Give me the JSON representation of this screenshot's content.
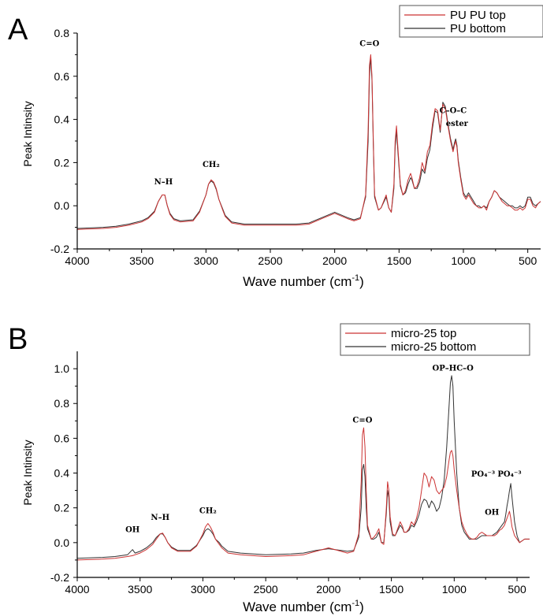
{
  "chart_data": [
    {
      "panel_label": "A",
      "type": "line",
      "title": "",
      "xlabel": "Wave number (cm⁻¹)",
      "xlabel_main": "Wave number (cm",
      "xlabel_sup": "-1",
      "xlabel_end": ")",
      "ylabel": "Peak Intinsity",
      "xlim": [
        4000,
        400
      ],
      "ylim": [
        -0.2,
        0.8
      ],
      "x_ticks": [
        4000,
        3500,
        3000,
        2500,
        2000,
        1500,
        1000,
        500
      ],
      "y_ticks": [
        -0.2,
        0.0,
        0.2,
        0.4,
        0.6,
        0.8
      ],
      "y_tick_labels": [
        "-0.2",
        "0.0",
        "0.2",
        "0.4",
        "0.6",
        "0.8"
      ],
      "legend_position": "top-right",
      "series": [
        {
          "name": "PU PU top",
          "color": "#cc3333",
          "x": [
            4000,
            3800,
            3700,
            3600,
            3500,
            3450,
            3400,
            3370,
            3340,
            3320,
            3300,
            3280,
            3250,
            3200,
            3100,
            3050,
            3000,
            2980,
            2960,
            2940,
            2920,
            2900,
            2870,
            2850,
            2800,
            2700,
            2500,
            2300,
            2200,
            2100,
            2000,
            1900,
            1850,
            1800,
            1760,
            1740,
            1730,
            1720,
            1710,
            1700,
            1690,
            1660,
            1640,
            1600,
            1580,
            1560,
            1540,
            1530,
            1520,
            1510,
            1490,
            1470,
            1450,
            1430,
            1410,
            1400,
            1380,
            1360,
            1340,
            1320,
            1300,
            1280,
            1260,
            1240,
            1220,
            1200,
            1180,
            1160,
            1140,
            1120,
            1100,
            1080,
            1070,
            1060,
            1050,
            1040,
            1020,
            1000,
            980,
            960,
            940,
            920,
            900,
            880,
            860,
            840,
            820,
            800,
            780,
            760,
            740,
            720,
            700,
            680,
            660,
            640,
            620,
            600,
            580,
            560,
            540,
            520,
            500,
            480,
            460,
            440,
            420,
            400
          ],
          "y": [
            -0.11,
            -0.105,
            -0.1,
            -0.09,
            -0.075,
            -0.06,
            -0.03,
            0.02,
            0.05,
            0.05,
            0.0,
            -0.04,
            -0.065,
            -0.075,
            -0.07,
            -0.03,
            0.05,
            0.1,
            0.12,
            0.11,
            0.08,
            0.03,
            -0.02,
            -0.05,
            -0.08,
            -0.09,
            -0.09,
            -0.09,
            -0.085,
            -0.06,
            -0.035,
            -0.06,
            -0.07,
            -0.06,
            0.05,
            0.35,
            0.65,
            0.7,
            0.6,
            0.3,
            0.05,
            -0.02,
            -0.01,
            0.05,
            -0.01,
            -0.03,
            0.1,
            0.3,
            0.37,
            0.28,
            0.1,
            0.05,
            0.07,
            0.12,
            0.15,
            0.13,
            0.08,
            0.09,
            0.13,
            0.2,
            0.16,
            0.25,
            0.28,
            0.38,
            0.45,
            0.44,
            0.35,
            0.47,
            0.45,
            0.37,
            0.3,
            0.25,
            0.28,
            0.3,
            0.27,
            0.2,
            0.12,
            0.05,
            0.03,
            0.05,
            0.03,
            0.01,
            0.0,
            -0.01,
            -0.01,
            0.0,
            -0.02,
            0.02,
            0.04,
            0.07,
            0.06,
            0.04,
            0.02,
            0.01,
            0.0,
            0.0,
            -0.01,
            -0.02,
            -0.02,
            -0.01,
            -0.02,
            -0.01,
            0.03,
            0.03,
            0.0,
            -0.01,
            0.01,
            0.02
          ]
        },
        {
          "name": "PU bottom",
          "color": "#333333",
          "x": [
            4000,
            3800,
            3700,
            3600,
            3500,
            3450,
            3400,
            3370,
            3340,
            3320,
            3300,
            3280,
            3250,
            3200,
            3100,
            3050,
            3000,
            2980,
            2960,
            2940,
            2920,
            2900,
            2870,
            2850,
            2800,
            2700,
            2500,
            2300,
            2200,
            2100,
            2000,
            1900,
            1850,
            1800,
            1760,
            1740,
            1730,
            1720,
            1710,
            1700,
            1690,
            1660,
            1640,
            1600,
            1580,
            1560,
            1540,
            1530,
            1520,
            1510,
            1490,
            1470,
            1450,
            1430,
            1410,
            1400,
            1380,
            1360,
            1340,
            1320,
            1300,
            1280,
            1260,
            1240,
            1220,
            1200,
            1180,
            1160,
            1140,
            1120,
            1100,
            1080,
            1070,
            1060,
            1050,
            1040,
            1020,
            1000,
            980,
            960,
            940,
            920,
            900,
            880,
            860,
            840,
            820,
            800,
            780,
            760,
            740,
            720,
            700,
            680,
            660,
            640,
            620,
            600,
            580,
            560,
            540,
            520,
            500,
            480,
            460,
            440,
            420,
            400
          ],
          "y": [
            -0.105,
            -0.1,
            -0.095,
            -0.085,
            -0.07,
            -0.055,
            -0.025,
            0.02,
            0.05,
            0.05,
            0.0,
            -0.035,
            -0.06,
            -0.07,
            -0.065,
            -0.025,
            0.05,
            0.1,
            0.115,
            0.105,
            0.075,
            0.03,
            -0.015,
            -0.045,
            -0.075,
            -0.085,
            -0.085,
            -0.085,
            -0.08,
            -0.055,
            -0.03,
            -0.055,
            -0.065,
            -0.055,
            0.04,
            0.3,
            0.6,
            0.69,
            0.58,
            0.28,
            0.04,
            -0.02,
            -0.01,
            0.04,
            -0.01,
            -0.03,
            0.08,
            0.27,
            0.35,
            0.26,
            0.09,
            0.05,
            0.06,
            0.1,
            0.13,
            0.12,
            0.08,
            0.08,
            0.11,
            0.17,
            0.15,
            0.22,
            0.26,
            0.36,
            0.44,
            0.43,
            0.34,
            0.48,
            0.46,
            0.38,
            0.31,
            0.26,
            0.29,
            0.31,
            0.28,
            0.21,
            0.13,
            0.06,
            0.04,
            0.06,
            0.04,
            0.02,
            0.0,
            0.0,
            -0.01,
            0.0,
            -0.01,
            0.02,
            0.04,
            0.07,
            0.06,
            0.04,
            0.03,
            0.02,
            0.01,
            0.0,
            0.0,
            -0.01,
            -0.01,
            0.0,
            -0.01,
            0.0,
            0.04,
            0.04,
            0.01,
            0.0,
            0.01,
            0.02
          ]
        }
      ],
      "annotations": [
        {
          "text": "N–H",
          "x": 3330,
          "y": 0.1
        },
        {
          "text": "CH₂",
          "x": 2960,
          "y": 0.18
        },
        {
          "text": "C=O",
          "x": 1730,
          "y": 0.74
        },
        {
          "text": "C–O–C",
          "x": 1080,
          "y": 0.43
        },
        {
          "text": "ester",
          "x": 1050,
          "y": 0.37
        }
      ]
    },
    {
      "panel_label": "B",
      "type": "line",
      "title": "",
      "xlabel": "Wave number (cm⁻¹)",
      "xlabel_main": "Wave number (cm",
      "xlabel_sup": "-1",
      "xlabel_end": ")",
      "ylabel": "Peak Intinsity",
      "xlim": [
        4000,
        400
      ],
      "ylim": [
        -0.2,
        1.1
      ],
      "x_ticks": [
        4000,
        3500,
        3000,
        2500,
        2000,
        1500,
        1000,
        500
      ],
      "y_ticks": [
        -0.2,
        0.0,
        0.2,
        0.4,
        0.6,
        0.8,
        1.0
      ],
      "y_tick_labels": [
        "-0.2",
        "0.0",
        "0.2",
        "0.4",
        "0.6",
        "0.8",
        "1.0"
      ],
      "legend_position": "top-right",
      "series": [
        {
          "name": "micro-25 top",
          "color": "#cc3333",
          "x": [
            4000,
            3800,
            3700,
            3600,
            3560,
            3540,
            3500,
            3450,
            3400,
            3370,
            3340,
            3320,
            3300,
            3280,
            3250,
            3200,
            3100,
            3050,
            3000,
            2980,
            2960,
            2940,
            2920,
            2900,
            2870,
            2850,
            2800,
            2700,
            2500,
            2300,
            2200,
            2100,
            2000,
            1900,
            1850,
            1800,
            1760,
            1740,
            1730,
            1720,
            1710,
            1700,
            1690,
            1660,
            1640,
            1620,
            1600,
            1580,
            1560,
            1540,
            1530,
            1520,
            1510,
            1490,
            1470,
            1450,
            1430,
            1410,
            1400,
            1380,
            1360,
            1340,
            1320,
            1300,
            1280,
            1260,
            1240,
            1220,
            1200,
            1180,
            1160,
            1140,
            1120,
            1100,
            1080,
            1060,
            1040,
            1030,
            1020,
            1010,
            1000,
            980,
            960,
            940,
            920,
            900,
            880,
            860,
            840,
            820,
            800,
            780,
            760,
            740,
            720,
            700,
            680,
            660,
            640,
            620,
            600,
            590,
            580,
            570,
            560,
            550,
            540,
            520,
            500,
            480,
            460,
            440,
            420,
            400
          ],
          "y": [
            -0.1,
            -0.095,
            -0.09,
            -0.08,
            -0.075,
            -0.07,
            -0.06,
            -0.04,
            -0.01,
            0.02,
            0.05,
            0.055,
            0.03,
            0.0,
            -0.03,
            -0.05,
            -0.05,
            -0.02,
            0.05,
            0.09,
            0.11,
            0.09,
            0.06,
            0.02,
            -0.01,
            -0.03,
            -0.06,
            -0.07,
            -0.08,
            -0.075,
            -0.07,
            -0.05,
            -0.03,
            -0.05,
            -0.06,
            -0.05,
            0.05,
            0.35,
            0.62,
            0.66,
            0.55,
            0.3,
            0.1,
            0.02,
            0.03,
            0.05,
            0.08,
            0.0,
            -0.01,
            0.2,
            0.35,
            0.3,
            0.15,
            0.05,
            0.04,
            0.08,
            0.12,
            0.09,
            0.06,
            0.06,
            0.08,
            0.12,
            0.1,
            0.14,
            0.2,
            0.3,
            0.4,
            0.38,
            0.32,
            0.38,
            0.36,
            0.3,
            0.28,
            0.3,
            0.32,
            0.38,
            0.48,
            0.52,
            0.53,
            0.5,
            0.42,
            0.3,
            0.2,
            0.12,
            0.08,
            0.05,
            0.03,
            0.02,
            0.02,
            0.03,
            0.05,
            0.06,
            0.05,
            0.04,
            0.04,
            0.04,
            0.04,
            0.05,
            0.07,
            0.08,
            0.1,
            0.12,
            0.14,
            0.16,
            0.18,
            0.14,
            0.09,
            0.04,
            0.02,
            0.0,
            0.01,
            0.02,
            0.02,
            0.02
          ]
        },
        {
          "name": "micro-25 bottom",
          "color": "#333333",
          "x": [
            4000,
            3800,
            3700,
            3600,
            3560,
            3540,
            3500,
            3450,
            3400,
            3370,
            3340,
            3320,
            3300,
            3280,
            3250,
            3200,
            3100,
            3050,
            3000,
            2980,
            2960,
            2940,
            2920,
            2900,
            2870,
            2850,
            2800,
            2700,
            2500,
            2300,
            2200,
            2100,
            2000,
            1900,
            1850,
            1800,
            1760,
            1740,
            1730,
            1720,
            1710,
            1700,
            1690,
            1660,
            1640,
            1620,
            1600,
            1580,
            1560,
            1540,
            1530,
            1520,
            1510,
            1490,
            1470,
            1450,
            1430,
            1410,
            1400,
            1380,
            1360,
            1340,
            1320,
            1300,
            1280,
            1260,
            1240,
            1220,
            1200,
            1180,
            1160,
            1140,
            1120,
            1100,
            1080,
            1060,
            1040,
            1030,
            1020,
            1010,
            1000,
            980,
            960,
            940,
            920,
            900,
            880,
            860,
            840,
            820,
            800,
            780,
            760,
            740,
            720,
            700,
            680,
            660,
            640,
            620,
            600,
            590,
            580,
            570,
            560,
            550,
            540,
            520,
            500,
            480,
            460,
            440,
            420,
            400
          ],
          "y": [
            -0.09,
            -0.085,
            -0.08,
            -0.07,
            -0.04,
            -0.06,
            -0.05,
            -0.03,
            0.0,
            0.03,
            0.05,
            0.05,
            0.03,
            0.0,
            -0.025,
            -0.045,
            -0.045,
            -0.015,
            0.04,
            0.07,
            0.08,
            0.07,
            0.05,
            0.02,
            0.0,
            -0.02,
            -0.05,
            -0.06,
            -0.07,
            -0.065,
            -0.06,
            -0.045,
            -0.035,
            -0.045,
            -0.05,
            -0.045,
            0.03,
            0.2,
            0.42,
            0.45,
            0.38,
            0.2,
            0.08,
            0.02,
            0.02,
            0.03,
            0.06,
            0.0,
            0.0,
            0.17,
            0.3,
            0.26,
            0.12,
            0.04,
            0.04,
            0.07,
            0.1,
            0.08,
            0.06,
            0.06,
            0.07,
            0.1,
            0.09,
            0.12,
            0.16,
            0.22,
            0.25,
            0.24,
            0.2,
            0.24,
            0.22,
            0.18,
            0.2,
            0.26,
            0.36,
            0.55,
            0.8,
            0.92,
            0.96,
            0.9,
            0.7,
            0.4,
            0.2,
            0.1,
            0.06,
            0.04,
            0.02,
            0.02,
            0.02,
            0.02,
            0.03,
            0.04,
            0.04,
            0.04,
            0.04,
            0.04,
            0.05,
            0.06,
            0.08,
            0.1,
            0.12,
            0.16,
            0.21,
            0.25,
            0.3,
            0.34,
            0.26,
            0.12,
            0.04,
            0.0,
            0.01,
            0.02,
            0.02,
            0.02
          ]
        }
      ],
      "annotations": [
        {
          "text": "OH",
          "x": 3560,
          "y": 0.06
        },
        {
          "text": "N–H",
          "x": 3340,
          "y": 0.13
        },
        {
          "text": "CH₂",
          "x": 2960,
          "y": 0.17
        },
        {
          "text": "C=O",
          "x": 1730,
          "y": 0.69
        },
        {
          "text": "OP–HC–O",
          "x": 1010,
          "y": 0.99
        },
        {
          "text": "PO₄⁻³",
          "x": 770,
          "y": 0.38
        },
        {
          "text": "OH",
          "x": 700,
          "y": 0.16
        },
        {
          "text": "PO₄⁻³",
          "x": 560,
          "y": 0.38
        }
      ]
    }
  ]
}
